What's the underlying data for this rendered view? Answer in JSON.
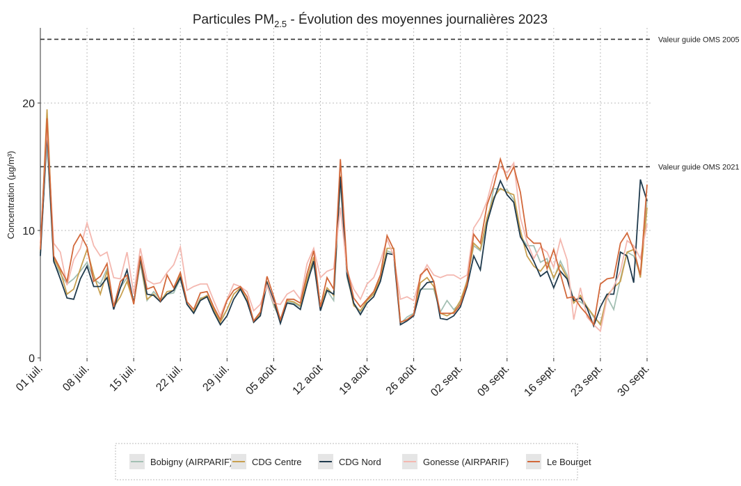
{
  "chart_data": {
    "type": "line",
    "title_prefix": "Particules PM",
    "title_subscript": "2.5",
    "title_suffix": " - Évolution des moyennes journalières 2023",
    "y_label": "Concentration (µg/m³)",
    "categories": [
      "01 juil.",
      null,
      null,
      null,
      null,
      null,
      null,
      "08 juil.",
      null,
      null,
      null,
      null,
      null,
      null,
      "15 juil.",
      null,
      null,
      null,
      null,
      null,
      null,
      "22 juil.",
      null,
      null,
      null,
      null,
      null,
      null,
      "29 juil.",
      null,
      null,
      null,
      null,
      null,
      null,
      "05 août",
      null,
      null,
      null,
      null,
      null,
      null,
      "12 août",
      null,
      null,
      null,
      null,
      null,
      null,
      "19 août",
      null,
      null,
      null,
      null,
      null,
      null,
      "26 août",
      null,
      null,
      null,
      null,
      null,
      null,
      "02 sept.",
      null,
      null,
      null,
      null,
      null,
      null,
      "09 sept.",
      null,
      null,
      null,
      null,
      null,
      null,
      "16 sept.",
      null,
      null,
      null,
      null,
      null,
      null,
      "23 sept.",
      null,
      null,
      null,
      null,
      null,
      null,
      "30 sept."
    ],
    "ylim": [
      0,
      25.9
    ],
    "yticks": [
      0,
      10,
      20
    ],
    "grid": true,
    "reference_lines": [
      {
        "value": 25,
        "label": "Valeur guide OMS 2005"
      },
      {
        "value": 15,
        "label": "Valeur guide OMS 2021"
      }
    ],
    "series": [
      {
        "name": "Bobigny (AIRPARIF)",
        "color": "#a3bfb3",
        "values": [
          8.5,
          17,
          7.5,
          6.6,
          5.8,
          6.2,
          6.8,
          7.5,
          6.2,
          5.8,
          7,
          4.1,
          5.5,
          6.3,
          4.3,
          7.4,
          4.5,
          5.2,
          4.6,
          5,
          5.1,
          6.2,
          4.2,
          3.6,
          4.7,
          4.8,
          3.8,
          2.9,
          3.8,
          5,
          5.5,
          4.4,
          2.9,
          3.5,
          5.7,
          4.1,
          3,
          4.4,
          4.3,
          4,
          6.1,
          7.3,
          4,
          5.3,
          4.5,
          13.8,
          6.3,
          4.3,
          3.6,
          4.5,
          5.1,
          6.1,
          8.4,
          8.2,
          2.7,
          3.2,
          3.5,
          5.4,
          5.4,
          5.4,
          3.6,
          4.5,
          3.8,
          4.3,
          6.1,
          8.8,
          8.4,
          10.5,
          13.3,
          13.2,
          13.2,
          12.4,
          9.6,
          8.8,
          8.8,
          7.5,
          7.8,
          6.2,
          7.6,
          6.5,
          4.5,
          4.4,
          4,
          3.2,
          2.7,
          4.8,
          3.8,
          6.2,
          8.3,
          8,
          6.5,
          12.5
        ]
      },
      {
        "name": "CDG Centre",
        "color": "#c8a050",
        "values": [
          8.2,
          19.5,
          7.8,
          6.8,
          5,
          5.4,
          7,
          8.5,
          6.5,
          5,
          6.8,
          4,
          4.8,
          6,
          4.3,
          7.7,
          4.6,
          5,
          4.4,
          5.2,
          5.3,
          6.5,
          4.2,
          3.6,
          4.6,
          4.9,
          3.8,
          2.8,
          3.8,
          5,
          5.5,
          4.5,
          2.8,
          3.4,
          6,
          4.3,
          2.9,
          4.5,
          4.4,
          4.1,
          6.2,
          7.9,
          4,
          5.5,
          4.9,
          14.3,
          6.6,
          4.1,
          3.7,
          4.5,
          5,
          6.2,
          8.6,
          8.6,
          2.8,
          3,
          3.4,
          5.9,
          6.3,
          5.6,
          3.5,
          3.3,
          3.6,
          4.5,
          6,
          9,
          8.5,
          11,
          12.6,
          13.3,
          13,
          12.8,
          10,
          8,
          7.2,
          6.8,
          7.5,
          6.3,
          7.3,
          6.3,
          4.3,
          4.9,
          4,
          3.3,
          2.6,
          4.9,
          5.5,
          6,
          8.3,
          8.5,
          6.3,
          11.8
        ]
      },
      {
        "name": "CDG Nord",
        "color": "#1f3a4d",
        "values": [
          8,
          17.6,
          7.6,
          6.2,
          4.7,
          4.6,
          6.2,
          7.2,
          5.6,
          5.6,
          6.3,
          3.8,
          5.5,
          6.9,
          4.3,
          7.8,
          5,
          4.9,
          4.4,
          5,
          5.3,
          6.3,
          4.2,
          3.5,
          4.5,
          4.8,
          3.6,
          2.6,
          3.3,
          4.6,
          5.4,
          4.4,
          2.8,
          3.3,
          5.9,
          4.5,
          2.7,
          4.3,
          4.2,
          3.8,
          5.8,
          7.6,
          3.7,
          5.3,
          5,
          14.2,
          6.5,
          4.3,
          3.4,
          4.3,
          4.8,
          6,
          8.2,
          8.1,
          2.6,
          2.9,
          3.3,
          5.3,
          5.9,
          6,
          3.1,
          3,
          3.3,
          4,
          5.6,
          8,
          6.9,
          10.6,
          12.4,
          13.9,
          12.8,
          12.2,
          9.5,
          8.6,
          7.6,
          6.4,
          6.8,
          5.5,
          6.8,
          6.2,
          4.5,
          4.7,
          3.9,
          2.5,
          4,
          5,
          5,
          8.3,
          8,
          5.9,
          14,
          12.3
        ]
      },
      {
        "name": "Gonesse (AIRPARIF)",
        "color": "#f4b8b0",
        "values": [
          9,
          18,
          9,
          8.3,
          5.7,
          7.7,
          8.6,
          10.6,
          8.8,
          8,
          8.3,
          6.3,
          6.2,
          8.3,
          5,
          8.6,
          6.1,
          5.8,
          5.9,
          6.7,
          7.3,
          8.7,
          5.3,
          5.6,
          5.8,
          5.8,
          4.5,
          3.3,
          4.6,
          5.8,
          5.6,
          5.2,
          3.7,
          4.2,
          5.7,
          4.3,
          4.2,
          5,
          5.3,
          4.6,
          7.4,
          8.6,
          6.3,
          6.8,
          7,
          11.8,
          6.8,
          5.4,
          4.6,
          5.8,
          6.3,
          7.6,
          9.3,
          8,
          4.6,
          4.8,
          4.5,
          6.3,
          7.3,
          6.5,
          6.3,
          6.5,
          6.5,
          6.2,
          6.5,
          10.2,
          11,
          12.3,
          14.3,
          15,
          14.5,
          15.3,
          11,
          9.1,
          7.8,
          8.7,
          8.3,
          7.1,
          9.3,
          7.7,
          3,
          5.5,
          3.2,
          2.6,
          2.1,
          4.7,
          5.6,
          6.8,
          9.2,
          8.8,
          7.8,
          10.5
        ]
      },
      {
        "name": "Le Bourget",
        "color": "#d2683a",
        "values": [
          8.5,
          18.8,
          8,
          7,
          6,
          8.8,
          9.7,
          8.7,
          6,
          6.4,
          7.4,
          4,
          6,
          6.5,
          4.2,
          8,
          5.4,
          5.6,
          4.5,
          6.5,
          5.5,
          6.7,
          4.4,
          3.8,
          5.1,
          5.2,
          4,
          3,
          4.5,
          5.3,
          5.6,
          4.8,
          2.9,
          3.6,
          6.4,
          4.8,
          3,
          4.6,
          4.6,
          4.3,
          6.6,
          8.4,
          4,
          6.3,
          5.4,
          15.6,
          7,
          4.7,
          4,
          4.6,
          5.2,
          6.5,
          9.6,
          8.5,
          2.8,
          3,
          3.4,
          6.5,
          7,
          6,
          3.5,
          3.5,
          3.5,
          4.2,
          5.8,
          9.7,
          9,
          12,
          13.5,
          15.6,
          14,
          15,
          13,
          9.5,
          9,
          9,
          7,
          8.5,
          6.6,
          4.7,
          4.8,
          4,
          3.4,
          2.6,
          5.8,
          6.2,
          6.3,
          9,
          9.8,
          8.5,
          6.5,
          13.6
        ]
      }
    ]
  }
}
